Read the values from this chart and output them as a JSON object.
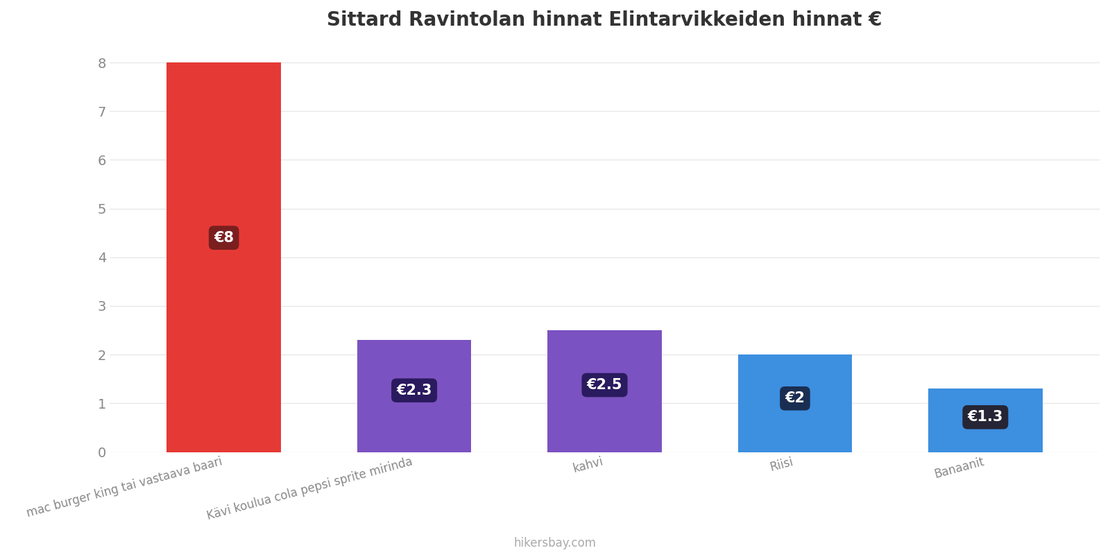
{
  "title": "Sittard Ravintolan hinnat Elintarvikkeiden hinnat €",
  "categories": [
    "mac burger king tai vastaava baari",
    "Kävi koulua cola pepsi sprite mirinda",
    "kahvi",
    "Riisi",
    "Banaanit"
  ],
  "values": [
    8,
    2.3,
    2.5,
    2.0,
    1.3
  ],
  "bar_colors": [
    "#e53935",
    "#7b52c1",
    "#7b52c1",
    "#3d8fe0",
    "#3d8fe0"
  ],
  "label_texts": [
    "€8",
    "€2.3",
    "€2.5",
    "€2",
    "€1.3"
  ],
  "label_bg_colors": [
    "#7a1f1f",
    "#2a1a5e",
    "#2a1a5e",
    "#1a2e52",
    "#252535"
  ],
  "ylim": [
    0,
    8.4
  ],
  "yticks": [
    0,
    1,
    2,
    3,
    4,
    5,
    6,
    7,
    8
  ],
  "background_color": "#ffffff",
  "grid_color": "#e8e8e8",
  "footer_text": "hikersbay.com",
  "title_fontsize": 20,
  "tick_fontsize": 12,
  "label_fontsize": 15,
  "bar_width": 0.6,
  "x_positions": [
    0,
    1,
    2,
    3,
    4
  ]
}
